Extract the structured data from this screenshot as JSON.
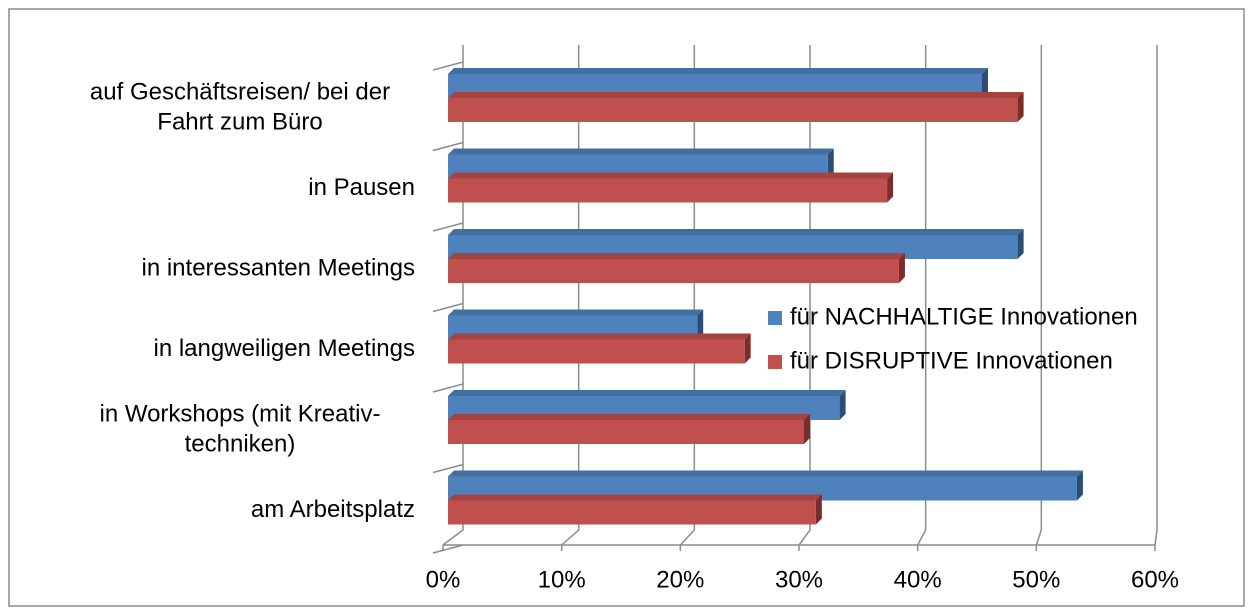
{
  "chart_data": {
    "type": "bar",
    "orientation": "horizontal",
    "categories": [
      "auf Geschäftsreisen/ bei der\nFahrt zum Büro",
      "in Pausen",
      "in interessanten Meetings",
      "in langweiligen Meetings",
      "in Workshops (mit Kreativ-\ntechniken)",
      "am Arbeitsplatz"
    ],
    "series": [
      {
        "name": "für NACHHALTIGE Innovationen",
        "color": "#4f81bd",
        "values": [
          45,
          32,
          48,
          21,
          33,
          53
        ]
      },
      {
        "name": "für DISRUPTIVE Innovationen",
        "color": "#c0504d",
        "values": [
          48,
          37,
          38,
          25,
          30,
          31
        ]
      }
    ],
    "xlim": [
      0,
      60
    ],
    "xticks": [
      {
        "value": 0,
        "label": "0%"
      },
      {
        "value": 10,
        "label": "10%"
      },
      {
        "value": 20,
        "label": "20%"
      },
      {
        "value": 30,
        "label": "30%"
      },
      {
        "value": 40,
        "label": "40%"
      },
      {
        "value": 50,
        "label": "50%"
      },
      {
        "value": 60,
        "label": "60%"
      }
    ],
    "grid": true,
    "legend": "right"
  }
}
